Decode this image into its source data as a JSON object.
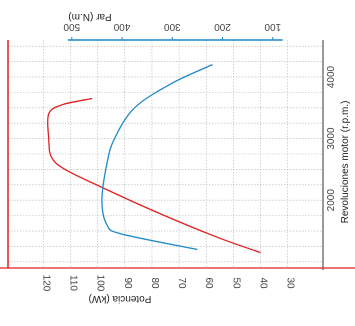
{
  "chart_data": {
    "type": "line",
    "x_axis": {
      "label": "Revoluciones motor (r.p.m.)",
      "range": [
        900,
        4600
      ],
      "ticks": [
        2000,
        3000,
        4000
      ]
    },
    "y_axis_left": {
      "label": "Potencia (kW)",
      "range": [
        17,
        133
      ],
      "ticks": [
        120,
        110,
        100,
        90,
        80,
        70,
        60,
        50,
        40,
        30
      ]
    },
    "y_axis_right": {
      "label": "Par (N.m)",
      "range": [
        0,
        627
      ],
      "ticks": [
        500,
        400,
        300,
        200,
        100
      ]
    },
    "series": [
      {
        "axis": "left",
        "color": "#e02020",
        "points": [
          [
            1150,
            40
          ],
          [
            1400,
            56
          ],
          [
            1800,
            78
          ],
          [
            2200,
            98
          ],
          [
            2500,
            112
          ],
          [
            2700,
            117
          ],
          [
            3000,
            118
          ],
          [
            3400,
            118
          ],
          [
            3550,
            113
          ],
          [
            3650,
            102
          ]
        ]
      },
      {
        "axis": "right",
        "color": "#1e88c8",
        "points": [
          [
            1200,
            250
          ],
          [
            1450,
            400
          ],
          [
            1600,
            430
          ],
          [
            2000,
            440
          ],
          [
            2600,
            430
          ],
          [
            3000,
            415
          ],
          [
            3500,
            375
          ],
          [
            3900,
            300
          ],
          [
            4200,
            220
          ]
        ]
      }
    ],
    "grid": true
  }
}
